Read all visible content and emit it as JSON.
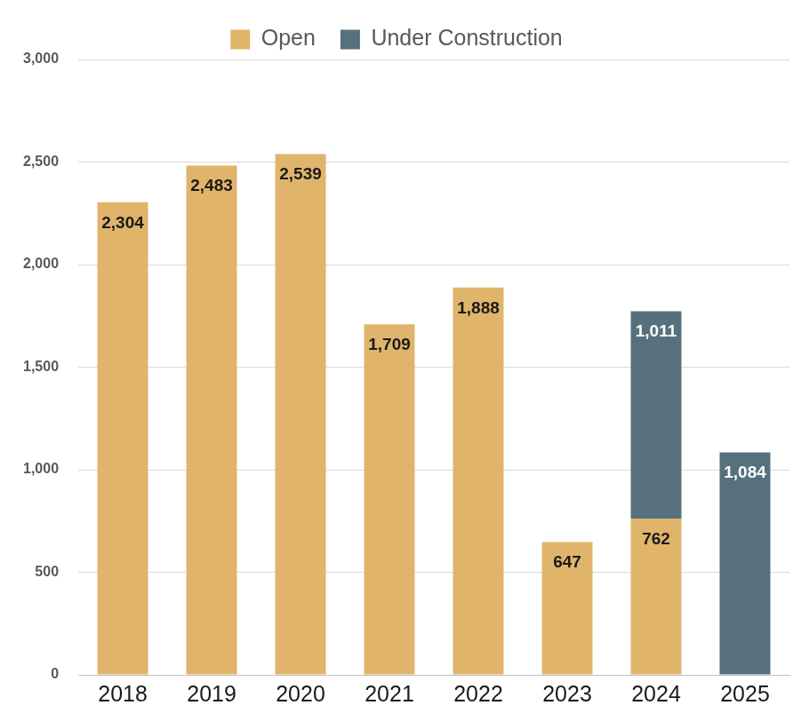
{
  "chart_data": {
    "type": "bar",
    "stacked": true,
    "grid": true,
    "legend": "top",
    "data_labels": true,
    "categories": [
      "2018",
      "2019",
      "2020",
      "2021",
      "2022",
      "2023",
      "2024",
      "2025"
    ],
    "series": [
      {
        "name": "Open",
        "color": "#e0b56b",
        "values": [
          2304,
          2483,
          2539,
          1709,
          1888,
          647,
          762,
          null
        ],
        "value_labels": [
          "2,304",
          "2,483",
          "2,539",
          "1,709",
          "1,888",
          "647",
          "762",
          null
        ]
      },
      {
        "name": "Under Construction",
        "color": "#56707e",
        "values": [
          null,
          null,
          null,
          null,
          null,
          null,
          1011,
          1084
        ],
        "value_labels": [
          null,
          null,
          null,
          null,
          null,
          null,
          "1,011",
          "1,084"
        ]
      }
    ],
    "ylim": [
      0,
      3000
    ],
    "yticks": [
      0,
      500,
      {
        "value": 1000,
        "label": "1,000"
      },
      {
        "value": 1500,
        "label": "1,500"
      },
      {
        "value": 2000,
        "label": "2,000"
      },
      {
        "value": 2500,
        "label": "2,500"
      },
      {
        "value": 3000,
        "label": "3,000"
      }
    ]
  }
}
